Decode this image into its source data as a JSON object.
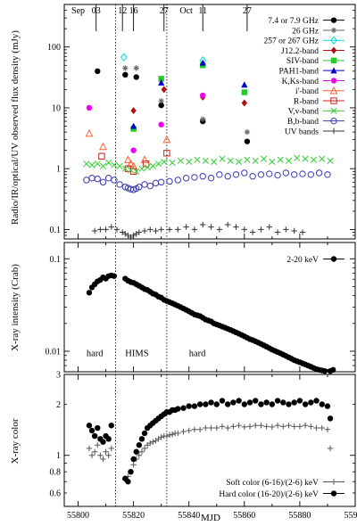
{
  "chart_data": [
    {
      "type": "scatter",
      "ylabel": "Radio/IR/optical/UV observed flux density (mJy)",
      "xlim": [
        55795,
        55900
      ],
      "ylim": [
        0.07,
        500
      ],
      "yscale": "log",
      "y_ticks": [
        0.1,
        1,
        10,
        100
      ],
      "y_tick_labels": [
        "0.1",
        "1",
        "10",
        "100"
      ],
      "legend_position": "top-right",
      "top_date_ticks": [
        {
          "mjd": 55806.5,
          "label": "03"
        },
        {
          "mjd": 55816,
          "label": "12"
        },
        {
          "mjd": 55820,
          "label": "16"
        },
        {
          "mjd": 55831,
          "label": "27"
        },
        {
          "mjd": 55845,
          "label": "11"
        },
        {
          "mjd": 55861,
          "label": "27"
        }
      ],
      "top_month_labels": [
        {
          "mjd": 55800,
          "label": "Sep"
        },
        {
          "mjd": 55839,
          "label": "Oct"
        }
      ],
      "series": [
        {
          "name": "7.4 or 7.9 GHz",
          "color": "#000000",
          "marker": "circle",
          "x": [
            55807,
            55817,
            55821,
            55830,
            55845,
            55861
          ],
          "y": [
            40,
            35,
            32,
            11,
            6,
            2.8
          ]
        },
        {
          "name": "26 GHz",
          "color": "#666666",
          "marker": "asterisk",
          "x": [
            55817,
            55821,
            55830,
            55845,
            55861
          ],
          "y": [
            45,
            45,
            13,
            6.5,
            4
          ]
        },
        {
          "name": "257 or 267 GHz",
          "color": "#00d8d8",
          "marker": "diamond-open",
          "x": [
            55816.5,
            55845
          ],
          "y": [
            68,
            60
          ]
        },
        {
          "name": "J12.2-band",
          "color": "#b01010",
          "marker": "diamond",
          "x": [
            55820,
            55831,
            55845,
            55860
          ],
          "y": [
            9,
            20,
            15,
            12
          ]
        },
        {
          "name": "SIV-band",
          "color": "#22cc22",
          "marker": "square",
          "x": [
            55820,
            55830,
            55845,
            55860
          ],
          "y": [
            4.5,
            30,
            50,
            18
          ]
        },
        {
          "name": "PAH1-band",
          "color": "#0000cc",
          "marker": "triangle",
          "x": [
            55820,
            55830,
            55845,
            55860
          ],
          "y": [
            5,
            26,
            55,
            24
          ]
        },
        {
          "name": "K,Ks-band",
          "color": "#ee00ee",
          "marker": "circle",
          "x": [
            55804,
            55820,
            55830,
            55845
          ],
          "y": [
            10,
            2,
            5.3,
            16
          ]
        },
        {
          "name": "i'-band",
          "color": "#ff6030",
          "marker": "triangle-open",
          "x": [
            55804,
            55809,
            55818,
            55819,
            55820,
            55824,
            55832
          ],
          "y": [
            3.8,
            2.3,
            1.4,
            1.2,
            1.1,
            1.4,
            3.0
          ]
        },
        {
          "name": "R-band",
          "color": "#cc2222",
          "marker": "square-open",
          "x": [
            55808.5,
            55818,
            55820,
            55824.5,
            55832
          ],
          "y": [
            1.6,
            1.0,
            0.9,
            1.2,
            1.8
          ]
        },
        {
          "name": "V,v-band",
          "color": "#33cc33",
          "marker": "cross",
          "x": [
            55803,
            55805,
            55807,
            55809,
            55811,
            55813,
            55815,
            55817,
            55819,
            55821,
            55823,
            55825,
            55827,
            55829,
            55831,
            55834,
            55837,
            55840,
            55843,
            55846,
            55849,
            55852,
            55855,
            55858,
            55861,
            55864,
            55867,
            55870,
            55873,
            55876,
            55879,
            55882,
            55885,
            55888,
            55891
          ],
          "y": [
            1.2,
            1.15,
            1.2,
            1.1,
            1.25,
            1.15,
            1.1,
            1.0,
            0.95,
            0.9,
            1.0,
            1.05,
            1.1,
            1.2,
            1.3,
            1.25,
            1.35,
            1.3,
            1.4,
            1.35,
            1.3,
            1.45,
            1.35,
            1.3,
            1.4,
            1.35,
            1.45,
            1.3,
            1.4,
            1.35,
            1.5,
            1.45,
            1.4,
            1.45,
            1.35
          ]
        },
        {
          "name": "B,b-band",
          "color": "#3a3ab0",
          "marker": "circle-open",
          "x": [
            55803,
            55805,
            55807,
            55809,
            55811,
            55813,
            55815,
            55817,
            55818,
            55819,
            55820,
            55821,
            55822,
            55824,
            55826,
            55828,
            55830,
            55833,
            55836,
            55839,
            55842,
            55845,
            55848,
            55851,
            55854,
            55857,
            55860,
            55863,
            55866,
            55869,
            55872,
            55875,
            55878,
            55881,
            55884,
            55887,
            55890
          ],
          "y": [
            0.65,
            0.7,
            0.68,
            0.6,
            0.7,
            0.65,
            0.55,
            0.5,
            0.48,
            0.46,
            0.45,
            0.47,
            0.5,
            0.55,
            0.52,
            0.58,
            0.6,
            0.62,
            0.65,
            0.7,
            0.72,
            0.75,
            0.7,
            0.8,
            0.75,
            0.8,
            0.85,
            0.75,
            0.8,
            0.82,
            0.78,
            0.85,
            0.8,
            0.82,
            0.8,
            0.85,
            0.8
          ]
        },
        {
          "name": "UV bands",
          "color": "#333333",
          "marker": "plus",
          "x": [
            55806,
            55808,
            55810,
            55812,
            55814,
            55816,
            55817,
            55818,
            55819,
            55820,
            55821,
            55822,
            55824,
            55826,
            55828,
            55830,
            55833,
            55836,
            55839,
            55842,
            55845,
            55848,
            55851,
            55854,
            55857,
            55860,
            55863,
            55866,
            55869,
            55872,
            55875,
            55878,
            55881
          ],
          "y": [
            0.095,
            0.1,
            0.1,
            0.11,
            0.1,
            0.09,
            0.085,
            0.08,
            0.075,
            0.08,
            0.085,
            0.09,
            0.095,
            0.1,
            0.095,
            0.1,
            0.1,
            0.1,
            0.11,
            0.1,
            0.12,
            0.11,
            0.1,
            0.12,
            0.11,
            0.1,
            0.09,
            0.1,
            0.11,
            0.09,
            0.1,
            0.095,
            0.09
          ]
        }
      ]
    },
    {
      "type": "scatter",
      "ylabel": "X-ray intensity (Crab)",
      "xlim": [
        55795,
        55900
      ],
      "ylim": [
        0.006,
        0.15
      ],
      "yscale": "log",
      "y_ticks": [
        0.01,
        0.1
      ],
      "y_tick_labels": [
        "0.01",
        "0.1"
      ],
      "legend_position": "top-right",
      "annotations": [
        {
          "text": "hard",
          "x": 55803,
          "y": 0.0088
        },
        {
          "text": "HIMS",
          "x": 55817,
          "y": 0.0088
        },
        {
          "text": "hard",
          "x": 55840,
          "y": 0.0088
        }
      ],
      "series": [
        {
          "name": "2-20 keV",
          "color": "#000000",
          "marker": "circle",
          "x": [
            55804,
            55805,
            55806,
            55807,
            55808,
            55809,
            55810,
            55811,
            55812,
            55813,
            55817,
            55818,
            55819,
            55820,
            55821,
            55822,
            55823,
            55824,
            55825,
            55826,
            55827,
            55828,
            55829,
            55830,
            55831,
            55832,
            55833,
            55834,
            55835,
            55836,
            55837,
            55838,
            55839,
            55840,
            55841,
            55842,
            55843,
            55844,
            55845,
            55846,
            55847,
            55848,
            55849,
            55850,
            55851,
            55852,
            55853,
            55854,
            55855,
            55856,
            55857,
            55858,
            55859,
            55860,
            55861,
            55862,
            55863,
            55864,
            55865,
            55866,
            55867,
            55868,
            55869,
            55870,
            55871,
            55872,
            55873,
            55874,
            55875,
            55876,
            55877,
            55878,
            55879,
            55880,
            55881,
            55882,
            55883,
            55884,
            55885,
            55886,
            55887,
            55888,
            55889,
            55890,
            55891,
            55892
          ],
          "y": [
            0.043,
            0.049,
            0.053,
            0.057,
            0.059,
            0.063,
            0.061,
            0.065,
            0.066,
            0.065,
            0.061,
            0.058,
            0.056,
            0.055,
            0.053,
            0.051,
            0.049,
            0.047,
            0.046,
            0.044,
            0.042,
            0.041,
            0.039,
            0.038,
            0.036,
            0.035,
            0.034,
            0.033,
            0.032,
            0.031,
            0.03,
            0.029,
            0.028,
            0.027,
            0.026,
            0.025,
            0.0245,
            0.024,
            0.023,
            0.022,
            0.0215,
            0.021,
            0.02,
            0.0195,
            0.019,
            0.0185,
            0.018,
            0.0175,
            0.017,
            0.0165,
            0.016,
            0.0155,
            0.015,
            0.0145,
            0.014,
            0.0135,
            0.0132,
            0.0128,
            0.0124,
            0.012,
            0.0116,
            0.0112,
            0.0108,
            0.0104,
            0.0101,
            0.0098,
            0.0095,
            0.0092,
            0.0089,
            0.0086,
            0.0083,
            0.008,
            0.0078,
            0.0076,
            0.0074,
            0.0072,
            0.007,
            0.0068,
            0.0066,
            0.0064,
            0.0063,
            0.0062,
            0.0061,
            0.006,
            0.0061,
            0.0063
          ]
        }
      ]
    },
    {
      "type": "scatter",
      "ylabel": "X-ray color",
      "xlabel": "MJD",
      "xlim": [
        55795,
        55900
      ],
      "ylim": [
        0.5,
        3
      ],
      "yscale": "log",
      "y_ticks": [
        0.6,
        0.8,
        1,
        2,
        3
      ],
      "y_tick_labels": [
        "0.6",
        "0.8",
        "1",
        "2",
        "3"
      ],
      "x_ticks": [
        55800,
        55820,
        55840,
        55860,
        55880,
        55900
      ],
      "x_tick_labels": [
        "55800",
        "55820",
        "55840",
        "55860",
        "55880",
        "55900"
      ],
      "legend_position": "bottom-right",
      "series": [
        {
          "name": "Soft color (6-16)/(2-6) keV",
          "color": "#555555",
          "marker": "plus",
          "x": [
            55804,
            55805,
            55806,
            55807,
            55808,
            55809,
            55810,
            55811,
            55812,
            55817,
            55818,
            55819,
            55820,
            55821,
            55822,
            55823,
            55824,
            55825,
            55826,
            55827,
            55828,
            55829,
            55830,
            55831,
            55832,
            55833,
            55834,
            55835,
            55836,
            55838,
            55840,
            55842,
            55844,
            55846,
            55848,
            55850,
            55852,
            55854,
            55856,
            55858,
            55860,
            55862,
            55864,
            55866,
            55868,
            55870,
            55872,
            55874,
            55876,
            55878,
            55880,
            55882,
            55884,
            55886,
            55888,
            55890,
            55891
          ],
          "y": [
            1.1,
            1.0,
            1.05,
            1.15,
            1.0,
            0.95,
            1.05,
            1.0,
            1.1,
            0.72,
            0.75,
            0.8,
            0.88,
            0.95,
            1.0,
            1.05,
            1.1,
            1.15,
            1.18,
            1.2,
            1.22,
            1.25,
            1.28,
            1.3,
            1.3,
            1.32,
            1.33,
            1.35,
            1.35,
            1.38,
            1.4,
            1.42,
            1.42,
            1.45,
            1.45,
            1.45,
            1.48,
            1.45,
            1.48,
            1.5,
            1.47,
            1.48,
            1.5,
            1.5,
            1.48,
            1.47,
            1.5,
            1.48,
            1.5,
            1.48,
            1.48,
            1.5,
            1.48,
            1.45,
            1.45,
            1.42,
            1.1
          ]
        },
        {
          "name": "Hard color (16-20)/(2-6) keV",
          "color": "#000000",
          "marker": "circle",
          "x": [
            55804,
            55805,
            55806,
            55807,
            55808,
            55809,
            55810,
            55811,
            55812,
            55817,
            55818,
            55819,
            55820,
            55821,
            55822,
            55823,
            55824,
            55825,
            55826,
            55827,
            55828,
            55829,
            55830,
            55831,
            55832,
            55833,
            55834,
            55835,
            55836,
            55838,
            55840,
            55842,
            55844,
            55846,
            55848,
            55850,
            55852,
            55854,
            55856,
            55858,
            55860,
            55862,
            55864,
            55866,
            55868,
            55870,
            55872,
            55874,
            55876,
            55878,
            55880,
            55882,
            55884,
            55886,
            55888,
            55890,
            55891
          ],
          "y": [
            1.5,
            1.4,
            1.3,
            1.45,
            1.25,
            1.2,
            1.3,
            1.25,
            1.5,
            0.73,
            0.7,
            0.8,
            0.95,
            1.05,
            1.15,
            1.25,
            1.35,
            1.45,
            1.5,
            1.55,
            1.6,
            1.65,
            1.7,
            1.75,
            1.8,
            1.8,
            1.85,
            1.85,
            1.88,
            1.9,
            1.95,
            1.95,
            2.0,
            2.0,
            2.05,
            2.0,
            2.1,
            2.0,
            2.05,
            2.1,
            2.0,
            2.05,
            2.1,
            2.0,
            2.05,
            2.0,
            2.1,
            2.05,
            2.0,
            2.05,
            2.1,
            2.0,
            2.05,
            2.1,
            2.0,
            1.95,
            1.65
          ]
        }
      ]
    }
  ],
  "state_transitions": [
    55813.5,
    55832
  ]
}
